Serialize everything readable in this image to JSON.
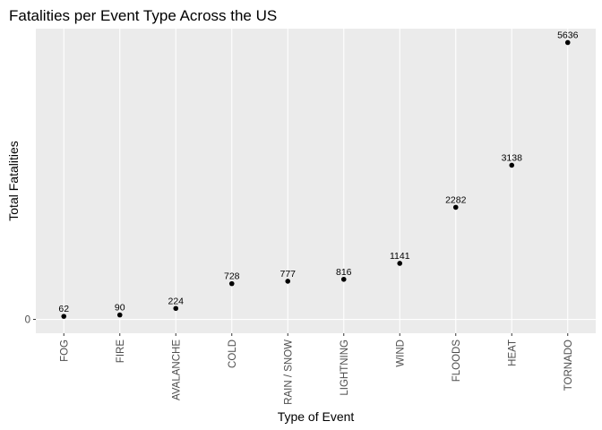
{
  "chart_data": {
    "type": "scatter",
    "title": "Fatalities per Event Type Across the US",
    "xlabel": "Type of Event",
    "ylabel": "Total Fatalities",
    "categories": [
      "FOG",
      "FIRE",
      "AVALANCHE",
      "COLD",
      "RAIN / SNOW",
      "LIGHTNING",
      "WIND",
      "FLOODS",
      "HEAT",
      "TORNADO"
    ],
    "values": [
      62,
      90,
      224,
      728,
      777,
      816,
      1141,
      2282,
      3138,
      5636
    ],
    "data_labels": [
      "62",
      "90",
      "224",
      "728",
      "777",
      "816",
      "1141",
      "2282",
      "3138",
      "5636"
    ],
    "y_ticks": [
      0
    ],
    "y_tick_labels": [
      "0"
    ],
    "ylim": [
      -282,
      5918
    ],
    "grid": true,
    "legend": "none",
    "colors": {
      "panel_background": "#ebebeb",
      "grid_major": "#ffffff",
      "point": "#000000"
    }
  }
}
